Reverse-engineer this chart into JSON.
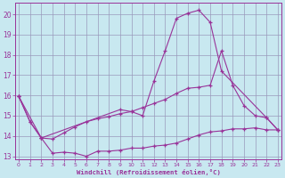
{
  "xlabel": "Windchill (Refroidissement éolien,°C)",
  "bg_color": "#c8e8f0",
  "grid_color": "#9999bb",
  "line_color": "#993399",
  "xlim_min": -0.3,
  "xlim_max": 23.3,
  "ylim_min": 12.85,
  "ylim_max": 20.55,
  "yticks": [
    13,
    14,
    15,
    16,
    17,
    18,
    19,
    20
  ],
  "xticks": [
    0,
    1,
    2,
    3,
    4,
    5,
    6,
    7,
    8,
    9,
    10,
    11,
    12,
    13,
    14,
    15,
    16,
    17,
    18,
    19,
    20,
    21,
    22,
    23
  ],
  "curve1_x": [
    0,
    1,
    2,
    3,
    4,
    5,
    6,
    7,
    8,
    9,
    10,
    11,
    12,
    13,
    14,
    15,
    16,
    17,
    18,
    19,
    20,
    21,
    22,
    23
  ],
  "curve1_y": [
    15.95,
    14.7,
    13.9,
    13.15,
    13.2,
    13.15,
    13.0,
    13.25,
    13.25,
    13.3,
    13.4,
    13.4,
    13.5,
    13.55,
    13.65,
    13.85,
    14.05,
    14.2,
    14.25,
    14.35,
    14.35,
    14.4,
    14.3,
    14.3
  ],
  "curve2_x": [
    0,
    1,
    2,
    3,
    4,
    5,
    6,
    7,
    8,
    9,
    10,
    11,
    12,
    13,
    14,
    15,
    16,
    17,
    18,
    19,
    20,
    21,
    22,
    23
  ],
  "curve2_y": [
    15.95,
    14.7,
    13.9,
    13.85,
    14.15,
    14.45,
    14.7,
    14.85,
    14.95,
    15.1,
    15.2,
    15.4,
    15.6,
    15.8,
    16.1,
    16.35,
    16.4,
    16.5,
    18.2,
    16.5,
    15.5,
    15.0,
    14.9,
    14.3
  ],
  "curve3_x": [
    0,
    2,
    9,
    10,
    11,
    12,
    13,
    14,
    15,
    16,
    17,
    18,
    22,
    23
  ],
  "curve3_y": [
    15.95,
    13.9,
    15.3,
    15.2,
    15.0,
    16.7,
    18.2,
    19.8,
    20.05,
    20.2,
    19.6,
    17.2,
    14.9,
    14.3
  ]
}
